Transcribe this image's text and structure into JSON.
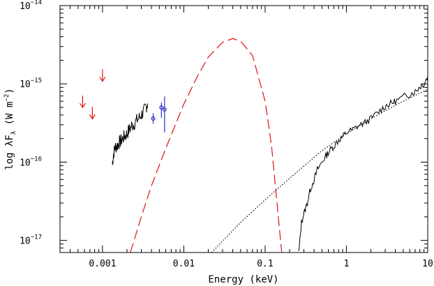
{
  "chart_data": {
    "type": "line",
    "title": "",
    "xlabel": "Energy (keV)",
    "ylabel": {
      "prefix": "log λF",
      "subscript": "λ",
      "units_open": " (W m",
      "units_exponent": "−2",
      "units_close": ")"
    },
    "xscale": "log",
    "yscale": "log",
    "xlim": [
      0.0003,
      10
    ],
    "ylim": [
      7e-18,
      1e-14
    ],
    "x_ticks": [
      {
        "value": 0.001,
        "label": "0.001"
      },
      {
        "value": 0.01,
        "label": "0.01"
      },
      {
        "value": 0.1,
        "label": "0.1"
      },
      {
        "value": 1,
        "label": "1"
      },
      {
        "value": 10,
        "label": "10"
      }
    ],
    "y_ticks": [
      {
        "value": 1e-17,
        "mantissa": "10",
        "exponent": "−17"
      },
      {
        "value": 1e-16,
        "mantissa": "10",
        "exponent": "−16"
      },
      {
        "value": 1e-15,
        "mantissa": "10",
        "exponent": "−15"
      },
      {
        "value": 1e-14,
        "mantissa": "10",
        "exponent": "−14"
      }
    ],
    "grid": false,
    "legend": "none",
    "colors": {
      "optical": "#000000",
      "uv": "#2b2bd0",
      "upper_limits": "#e01010",
      "blackbody": "#e01010",
      "xray": "#000000",
      "powerlaw": "#000000"
    },
    "series": [
      {
        "style": "solid black noisy spectrum",
        "x": [
          0.00132,
          0.00137,
          0.00143,
          0.0015,
          0.00158,
          0.00167,
          0.00177,
          0.00188,
          0.002,
          0.00213,
          0.00228,
          0.00245,
          0.00263,
          0.00283,
          0.00305,
          0.00325,
          0.00345,
          0.0036
        ],
        "y": [
          9.5e-17,
          1.3e-16,
          1.55e-16,
          1.6e-16,
          1.75e-16,
          1.85e-16,
          2e-16,
          2.15e-16,
          2.3e-16,
          2.6e-16,
          2.9e-16,
          3.1e-16,
          3.4e-16,
          3.7e-16,
          4.1e-16,
          4.5e-16,
          5.2e-16,
          5.6e-16
        ]
      },
      {
        "style": "blue points with error bars",
        "x": [
          0.0042,
          0.0053,
          0.0058
        ],
        "y": [
          3.6e-16,
          5e-16,
          4.7e-16
        ],
        "yerr_low": [
          3.1e-16,
          3.7e-16,
          2.4e-16
        ],
        "yerr_high": [
          4.2e-16,
          5.8e-16,
          6.9e-16
        ]
      },
      {
        "style": "red upper-limit arrows",
        "x": [
          0.00057,
          0.00075,
          0.001
        ],
        "y": [
          6e-16,
          4.3e-16,
          1.3e-15
        ]
      },
      {
        "style": "red dashed blackbody model",
        "x": [
          0.0022,
          0.003,
          0.004,
          0.006,
          0.01,
          0.015,
          0.02,
          0.03,
          0.04,
          0.05,
          0.07,
          0.1,
          0.12,
          0.14,
          0.16
        ],
        "y": [
          7e-18,
          2e-17,
          5e-17,
          1.5e-16,
          5.5e-16,
          1.3e-15,
          2.2e-15,
          3.4e-15,
          3.8e-15,
          3.5e-15,
          2.3e-15,
          6e-16,
          1.6e-16,
          3e-17,
          7e-18
        ]
      },
      {
        "style": "black dotted power law",
        "x": [
          0.022,
          0.05,
          0.1,
          0.2,
          0.5,
          1,
          2,
          5,
          10
        ],
        "y": [
          7e-18,
          1.7e-17,
          3.3e-17,
          6.2e-17,
          1.4e-16,
          2.3e-16,
          3.6e-16,
          6e-16,
          8.5e-16
        ]
      },
      {
        "style": "solid black x-ray spectrum",
        "x": [
          0.26,
          0.28,
          0.3,
          0.33,
          0.36,
          0.4,
          0.44,
          0.5,
          0.56,
          0.62,
          0.7,
          0.8,
          0.9,
          1.0,
          1.2,
          1.4,
          1.7,
          2.0,
          2.5,
          3.0,
          3.5,
          4.0,
          5.0,
          6.0,
          7.0,
          8.0,
          9.0,
          10.0
        ],
        "y": [
          7e-18,
          1.7e-17,
          2.2e-17,
          3e-17,
          4.5e-17,
          6e-17,
          8e-17,
          1e-16,
          1.2e-16,
          1.4e-16,
          1.6e-16,
          1.9e-16,
          2.1e-16,
          2.4e-16,
          2.6e-16,
          2.9e-16,
          3.2e-16,
          3.6e-16,
          4.4e-16,
          5.2e-16,
          5.6e-16,
          6e-16,
          6.8e-16,
          7.4e-16,
          8e-16,
          9.2e-16,
          1e-15,
          1.25e-15
        ]
      }
    ]
  }
}
